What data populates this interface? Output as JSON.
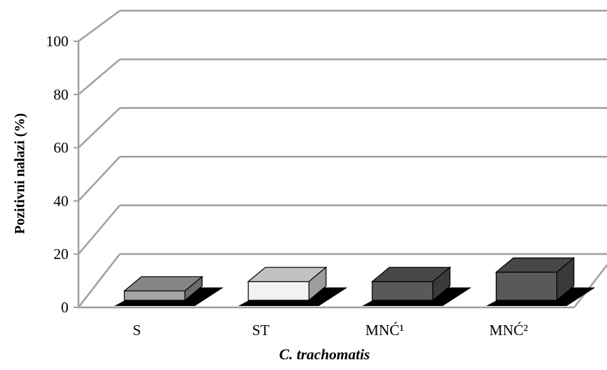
{
  "chart_data": {
    "type": "bar",
    "style": "3d-column",
    "categories": [
      "S",
      "ST",
      "MNĆ¹",
      "MNĆ²"
    ],
    "values": [
      5,
      10,
      10,
      15
    ],
    "bar_colors": [
      "#a6a6a6",
      "#f2f2f2",
      "#595959",
      "#595959"
    ],
    "xlabel": "C. trachomatis",
    "ylabel": "Pozitivni nalazi  (%)",
    "ylim": [
      0,
      100
    ],
    "yticks": [
      0,
      20,
      40,
      60,
      80,
      100
    ],
    "grid": true,
    "legend": "none"
  }
}
